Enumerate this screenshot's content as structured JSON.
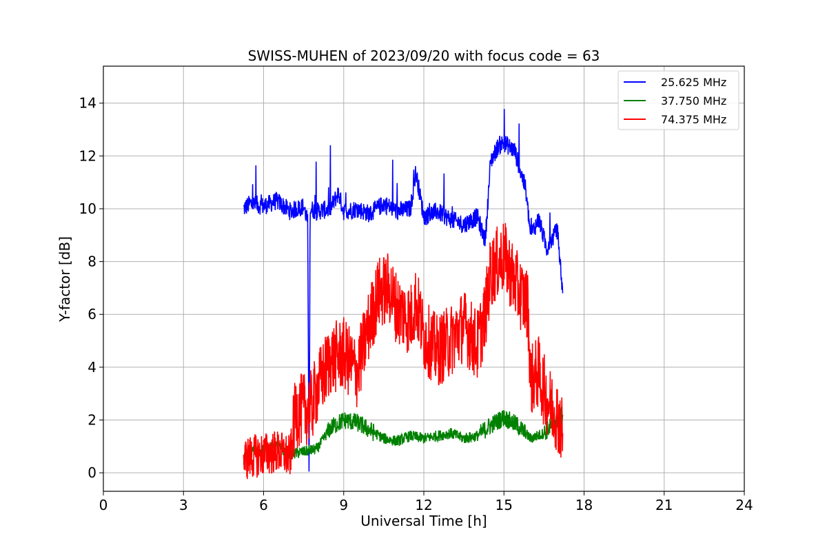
{
  "chart_data": {
    "type": "line",
    "title": "SWISS-MUHEN of 2023/09/20 with focus code = 63",
    "xlabel": "Universal Time [h]",
    "ylabel": "Y-factor [dB]",
    "xlim": [
      0,
      24
    ],
    "ylim": [
      -0.7,
      15.4
    ],
    "xticks": [
      0,
      3,
      6,
      9,
      12,
      15,
      18,
      21,
      24
    ],
    "yticks": [
      0,
      2,
      4,
      6,
      8,
      10,
      12,
      14
    ],
    "grid": true,
    "legend_position": "top-right",
    "series": [
      {
        "name": "25.625 MHz",
        "color": "#0000ff",
        "x": [
          5.25,
          5.5,
          6.0,
          6.5,
          7.0,
          7.5,
          7.65,
          7.7,
          7.75,
          8.0,
          8.5,
          8.8,
          9.0,
          9.5,
          10.0,
          10.5,
          11.0,
          11.5,
          11.7,
          12.0,
          12.5,
          13.0,
          13.5,
          14.0,
          14.3,
          14.5,
          14.8,
          15.0,
          15.4,
          15.8,
          16.0,
          16.3,
          16.6,
          17.0,
          17.2
        ],
        "y": [
          10.0,
          10.2,
          10.1,
          10.3,
          9.9,
          10.1,
          9.5,
          0.2,
          10.0,
          9.9,
          10.0,
          10.6,
          9.9,
          10.0,
          9.8,
          10.2,
          9.9,
          10.0,
          11.4,
          9.7,
          9.9,
          9.6,
          9.4,
          9.7,
          8.8,
          11.8,
          12.4,
          12.5,
          12.2,
          10.8,
          9.0,
          9.6,
          8.5,
          9.2,
          6.8
        ]
      },
      {
        "name": "37.750 MHz",
        "color": "#008000",
        "x": [
          5.25,
          5.5,
          6.0,
          6.5,
          7.0,
          7.5,
          8.0,
          8.5,
          9.0,
          9.5,
          10.0,
          10.5,
          11.0,
          11.5,
          12.0,
          12.5,
          13.0,
          13.5,
          14.0,
          14.5,
          15.0,
          15.5,
          16.0,
          16.5,
          17.0,
          17.2
        ],
        "y": [
          0.5,
          0.8,
          0.9,
          1.0,
          0.7,
          0.8,
          0.9,
          1.7,
          2.0,
          1.9,
          1.6,
          1.3,
          1.2,
          1.4,
          1.3,
          1.4,
          1.5,
          1.3,
          1.4,
          1.8,
          2.1,
          1.8,
          1.3,
          1.5,
          2.0,
          2.2
        ]
      },
      {
        "name": "74.375 MHz",
        "color": "#ff0000",
        "x": [
          5.25,
          5.5,
          6.0,
          6.5,
          7.0,
          7.2,
          7.5,
          7.8,
          8.0,
          8.2,
          8.5,
          9.0,
          9.5,
          10.0,
          10.3,
          10.7,
          11.0,
          11.5,
          11.7,
          12.0,
          12.5,
          13.0,
          13.5,
          14.0,
          14.3,
          14.5,
          14.8,
          15.0,
          15.5,
          15.9,
          16.0,
          16.3,
          16.6,
          17.0,
          17.2
        ],
        "y": [
          0.5,
          0.6,
          0.7,
          0.8,
          0.6,
          2.3,
          2.4,
          2.5,
          3.2,
          3.6,
          4.3,
          4.5,
          3.8,
          5.8,
          6.8,
          7.0,
          6.2,
          5.8,
          6.5,
          5.2,
          4.6,
          5.0,
          5.6,
          4.8,
          6.0,
          7.6,
          8.0,
          8.2,
          7.0,
          6.3,
          3.5,
          3.8,
          2.8,
          2.2,
          1.5
        ]
      }
    ]
  }
}
